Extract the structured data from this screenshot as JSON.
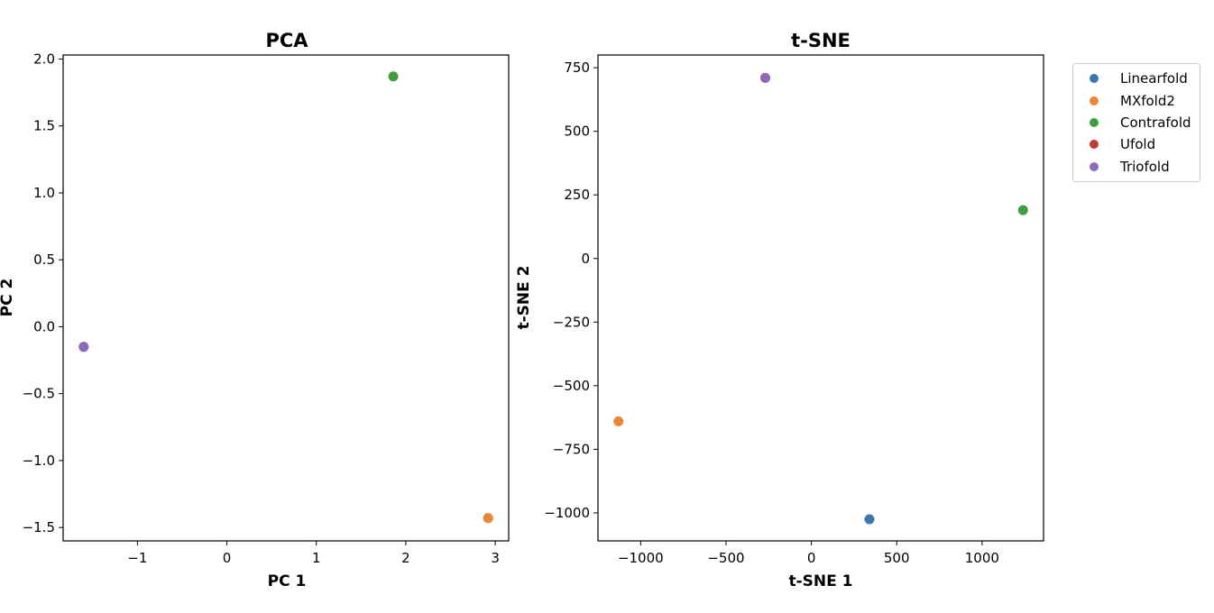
{
  "chart_data": [
    {
      "type": "scatter",
      "title": "PCA",
      "xlabel": "PC 1",
      "ylabel": "PC 2",
      "xlim": [
        -1.83,
        3.15
      ],
      "ylim": [
        -1.6,
        2.03
      ],
      "xticks": [
        {
          "value": -1,
          "label": "−1"
        },
        {
          "value": 0,
          "label": "0"
        },
        {
          "value": 1,
          "label": "1"
        },
        {
          "value": 2,
          "label": "2"
        },
        {
          "value": 3,
          "label": "3"
        }
      ],
      "yticks": [
        {
          "value": -1.5,
          "label": "−1.5"
        },
        {
          "value": -1.0,
          "label": "−1.0"
        },
        {
          "value": -0.5,
          "label": "−0.5"
        },
        {
          "value": 0.0,
          "label": "0.0"
        },
        {
          "value": 0.5,
          "label": "0.5"
        },
        {
          "value": 1.0,
          "label": "1.0"
        },
        {
          "value": 1.5,
          "label": "1.5"
        },
        {
          "value": 2.0,
          "label": "2.0"
        }
      ],
      "grid": false,
      "series": [
        {
          "name": "Linearfold",
          "color": "#3a75b0",
          "points": [
            [
              2.92,
              -1.43
            ]
          ]
        },
        {
          "name": "MXfold2",
          "color": "#ef8636",
          "points": [
            [
              2.92,
              -1.43
            ]
          ]
        },
        {
          "name": "Contrafold",
          "color": "#3f9e3f",
          "points": [
            [
              1.86,
              1.87
            ]
          ]
        },
        {
          "name": "Ufold",
          "color": "#c53932",
          "points": [
            [
              -1.6,
              -0.15
            ]
          ]
        },
        {
          "name": "Triofold",
          "color": "#8d69b8",
          "points": [
            [
              -1.6,
              -0.15
            ]
          ]
        }
      ]
    },
    {
      "type": "scatter",
      "title": "t-SNE",
      "xlabel": "t-SNE 1",
      "ylabel": "t-SNE 2",
      "xlim": [
        -1250,
        1360
      ],
      "ylim": [
        -1110,
        800
      ],
      "xticks": [
        {
          "value": -1000,
          "label": "−1000"
        },
        {
          "value": -500,
          "label": "−500"
        },
        {
          "value": 0,
          "label": "0"
        },
        {
          "value": 500,
          "label": "500"
        },
        {
          "value": 1000,
          "label": "1000"
        }
      ],
      "yticks": [
        {
          "value": -1000,
          "label": "−1000"
        },
        {
          "value": -750,
          "label": "−750"
        },
        {
          "value": -500,
          "label": "−500"
        },
        {
          "value": -250,
          "label": "−250"
        },
        {
          "value": 0,
          "label": "0"
        },
        {
          "value": 250,
          "label": "250"
        },
        {
          "value": 500,
          "label": "500"
        },
        {
          "value": 750,
          "label": "750"
        }
      ],
      "grid": false,
      "series": [
        {
          "name": "Linearfold",
          "color": "#3a75b0",
          "points": [
            [
              340,
              -1025
            ]
          ]
        },
        {
          "name": "MXfold2",
          "color": "#ef8636",
          "points": [
            [
              -1130,
              -640
            ]
          ]
        },
        {
          "name": "Contrafold",
          "color": "#3f9e3f",
          "points": [
            [
              1240,
              190
            ]
          ]
        },
        {
          "name": "Ufold",
          "color": "#c53932",
          "points": [
            [
              -270,
              710
            ]
          ]
        },
        {
          "name": "Triofold",
          "color": "#8d69b8",
          "points": [
            [
              -270,
              710
            ]
          ]
        }
      ]
    }
  ],
  "legend": {
    "placement": "outside-top-right",
    "items": [
      {
        "label": "Linearfold",
        "color": "#3a75b0"
      },
      {
        "label": "MXfold2",
        "color": "#ef8636"
      },
      {
        "label": "Contrafold",
        "color": "#3f9e3f"
      },
      {
        "label": "Ufold",
        "color": "#c53932"
      },
      {
        "label": "Triofold",
        "color": "#8d69b8"
      }
    ]
  }
}
